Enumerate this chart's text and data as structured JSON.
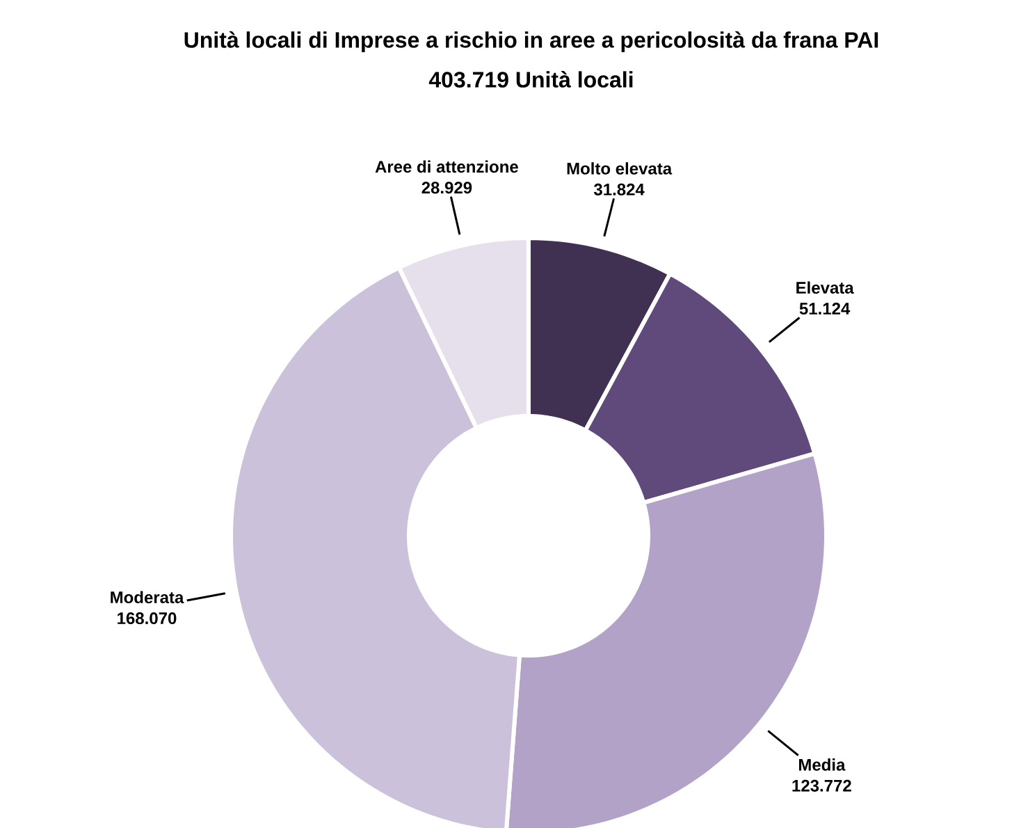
{
  "chart_data": {
    "type": "donut",
    "title": "Unità locali di Imprese a rischio in aree a pericolosità da frana PAI",
    "subtitle": "403.719 Unità locali",
    "categories": [
      "Molto elevata",
      "Elevata",
      "Media",
      "Moderata",
      "Aree di attenzione"
    ],
    "values": [
      31824,
      51124,
      123772,
      168070,
      28929
    ],
    "value_labels": [
      "31.824",
      "51.124",
      "123.772",
      "168.070",
      "28.929"
    ],
    "colors": [
      "#403152",
      "#604a7b",
      "#b3a2c7",
      "#ccc1da",
      "#e6e0ec"
    ]
  }
}
